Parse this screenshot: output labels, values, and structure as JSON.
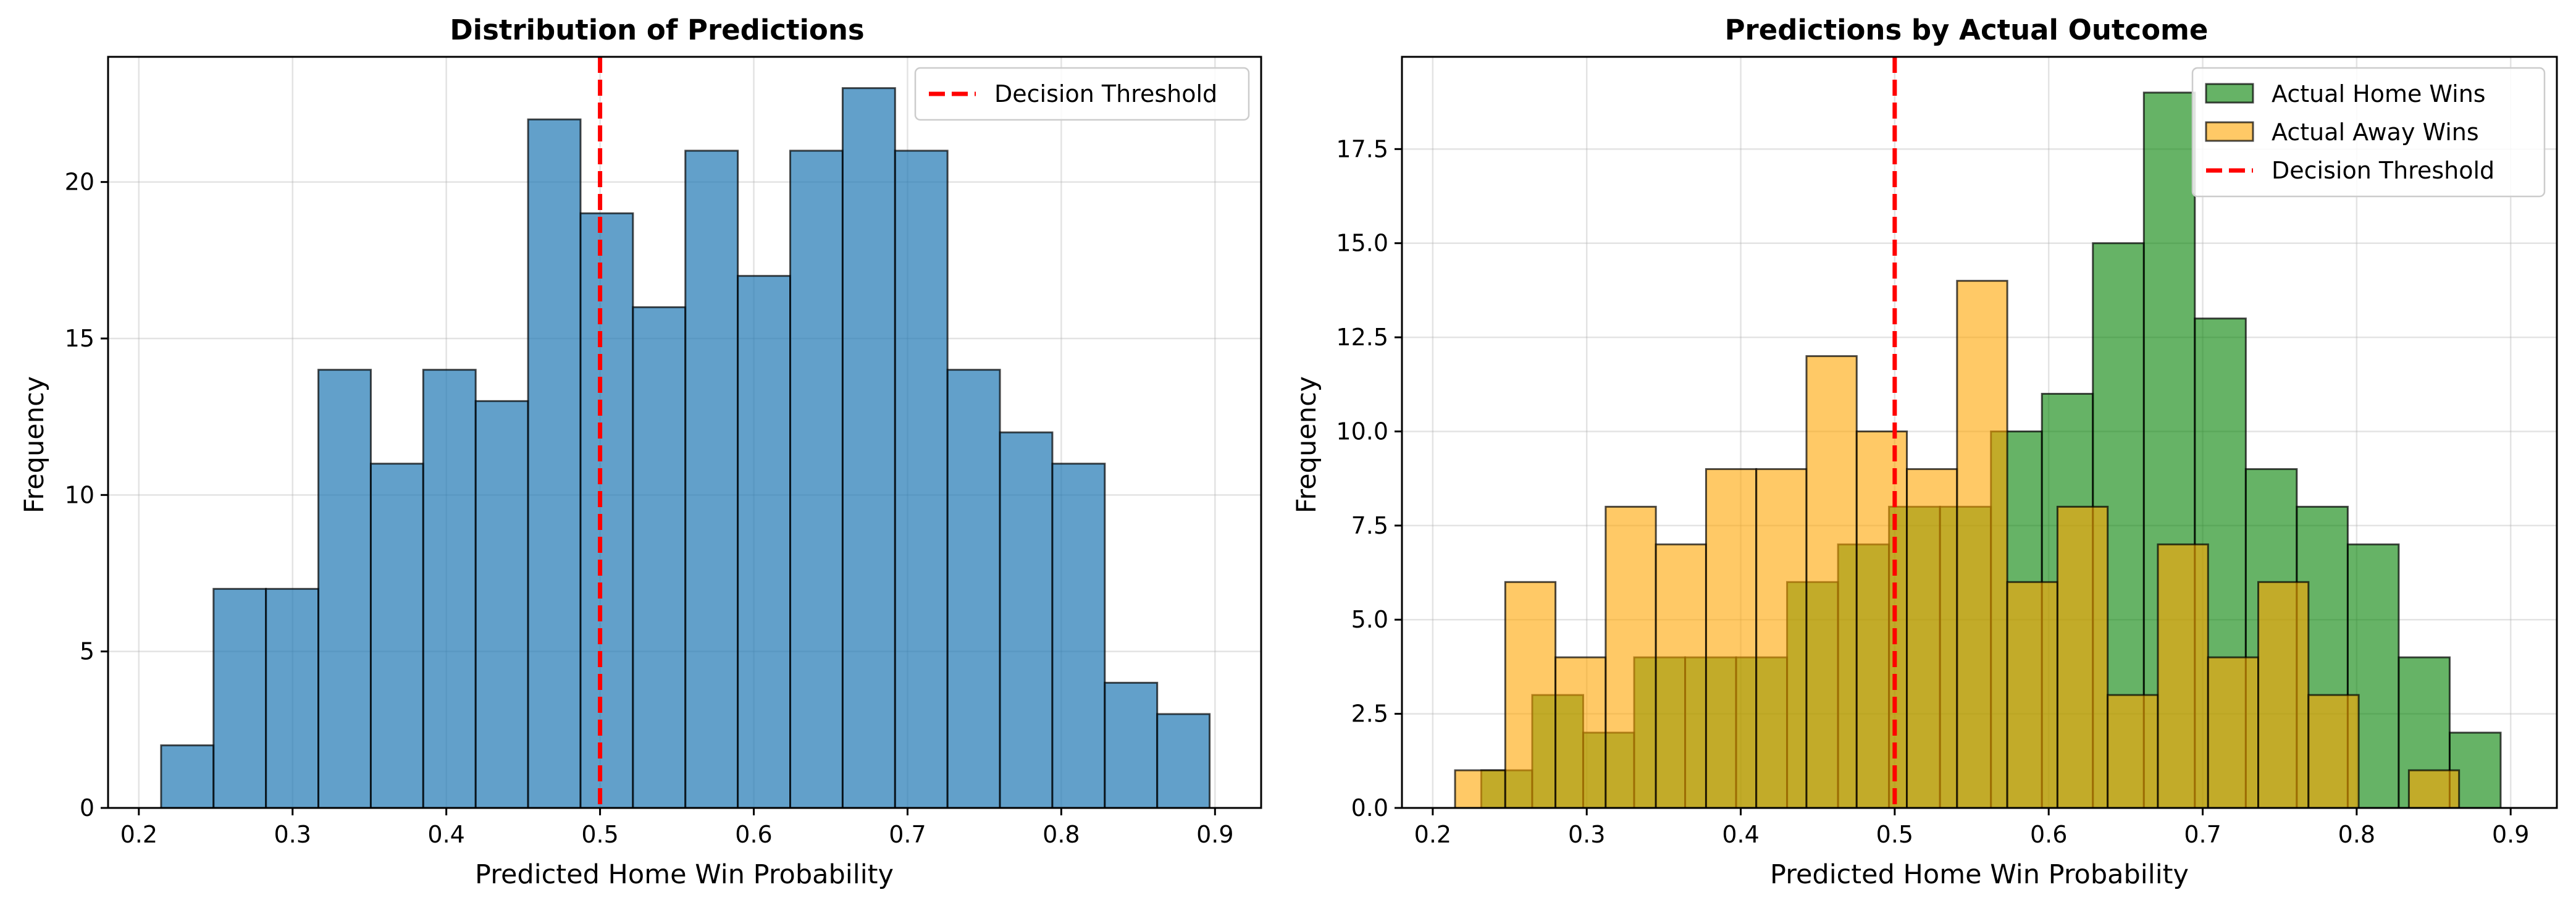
{
  "chart_data": [
    {
      "type": "bar",
      "title": "Distribution of Predictions",
      "xlabel": "Predicted Home Win Probability",
      "ylabel": "Frequency",
      "xlim": [
        0.18,
        0.93
      ],
      "ylim": [
        0,
        24
      ],
      "xticks": [
        0.2,
        0.3,
        0.4,
        0.5,
        0.6,
        0.7,
        0.8,
        0.9
      ],
      "xtick_labels": [
        "0.2",
        "0.3",
        "0.4",
        "0.5",
        "0.6",
        "0.7",
        "0.8",
        "0.9"
      ],
      "yticks": [
        0,
        5,
        10,
        15,
        20
      ],
      "ytick_labels": [
        "0",
        "5",
        "10",
        "15",
        "20"
      ],
      "grid": true,
      "legend_position": "top-right",
      "series": [
        {
          "name": "",
          "color": "#1f77b4",
          "opacity": 0.7,
          "bin_start": 0.2145,
          "bin_width": 0.0341,
          "values": [
            2,
            7,
            7,
            14,
            11,
            14,
            13,
            22,
            19,
            16,
            21,
            17,
            21,
            23,
            21,
            14,
            12,
            11,
            4,
            3
          ]
        }
      ],
      "threshold": {
        "name": "Decision Threshold",
        "x": 0.5,
        "color": "#ff0000"
      }
    },
    {
      "type": "bar",
      "title": "Predictions by Actual Outcome",
      "xlabel": "Predicted Home Win Probability",
      "ylabel": "Frequency",
      "xlim": [
        0.18,
        0.93
      ],
      "ylim": [
        0,
        19.95
      ],
      "xticks": [
        0.2,
        0.3,
        0.4,
        0.5,
        0.6,
        0.7,
        0.8,
        0.9
      ],
      "xtick_labels": [
        "0.2",
        "0.3",
        "0.4",
        "0.5",
        "0.6",
        "0.7",
        "0.8",
        "0.9"
      ],
      "yticks": [
        0,
        2.5,
        5,
        7.5,
        10,
        12.5,
        15,
        17.5
      ],
      "ytick_labels": [
        "0.0",
        "2.5",
        "5.0",
        "7.5",
        "10.0",
        "12.5",
        "15.0",
        "17.5"
      ],
      "grid": true,
      "legend_position": "top-right",
      "series": [
        {
          "name": "Actual Home Wins",
          "color": "#008000",
          "opacity": 0.6,
          "bin_start": 0.2315,
          "bin_width": 0.0331,
          "values": [
            1,
            3,
            2,
            4,
            4,
            4,
            6,
            7,
            8,
            8,
            10,
            11,
            15,
            19,
            13,
            9,
            8,
            7,
            4,
            2
          ]
        },
        {
          "name": "Actual Away Wins",
          "color": "#ffa500",
          "opacity": 0.6,
          "bin_start": 0.2145,
          "bin_width": 0.0326,
          "values": [
            1,
            6,
            4,
            8,
            7,
            9,
            9,
            12,
            10,
            9,
            14,
            6,
            8,
            3,
            7,
            4,
            6,
            3,
            0,
            1
          ]
        }
      ],
      "threshold": {
        "name": "Decision Threshold",
        "x": 0.5,
        "color": "#ff0000"
      }
    }
  ]
}
